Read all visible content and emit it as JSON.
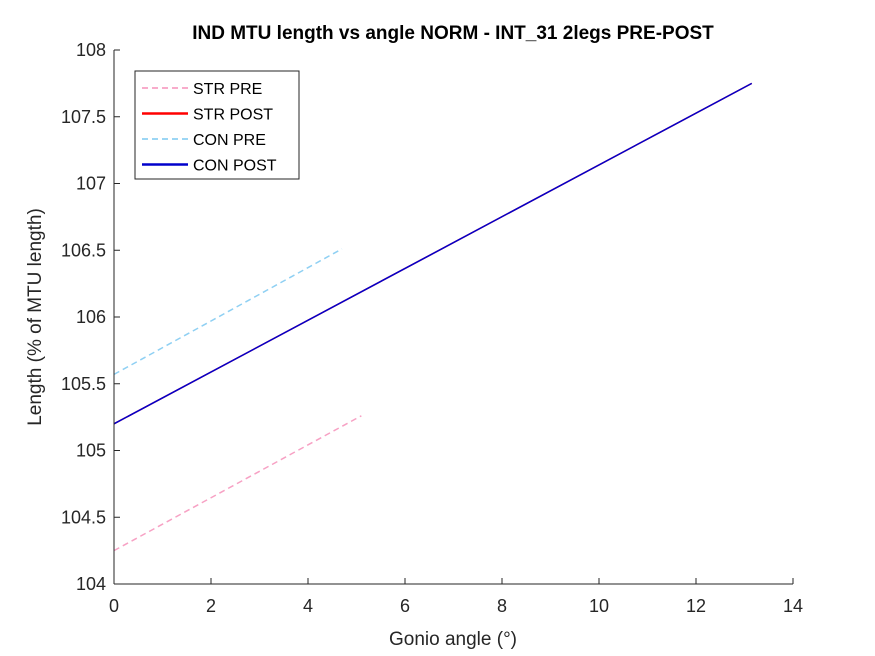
{
  "chart_data": {
    "type": "line",
    "title": "IND MTU length vs angle NORM - INT_31 2legs PRE-POST",
    "xlabel": "Gonio angle (°)",
    "ylabel": "Length (% of MTU length)",
    "xlim": [
      0,
      14
    ],
    "ylim": [
      104,
      108
    ],
    "xticks": [
      0,
      2,
      4,
      6,
      8,
      10,
      12,
      14
    ],
    "yticks": [
      104,
      104.5,
      105,
      105.5,
      106,
      106.5,
      107,
      107.5,
      108
    ],
    "xtick_labels": [
      "0",
      "2",
      "4",
      "6",
      "8",
      "10",
      "12",
      "14"
    ],
    "ytick_labels": [
      "104",
      "104.5",
      "105",
      "105.5",
      "106",
      "106.5",
      "107",
      "107.5",
      "108"
    ],
    "grid": false,
    "legend_position": "top-left",
    "series": [
      {
        "name": "STR PRE",
        "color": "#f7a1c4",
        "style": "dashed",
        "x": [
          0,
          5.1
        ],
        "y": [
          104.25,
          105.26
        ]
      },
      {
        "name": "STR POST",
        "color": "#ff0000",
        "style": "solid",
        "x": [
          0,
          13.15
        ],
        "y": [
          105.2,
          107.75
        ]
      },
      {
        "name": "CON PRE",
        "color": "#8fd0f3",
        "style": "dashed",
        "x": [
          0,
          4.7
        ],
        "y": [
          105.57,
          106.51
        ]
      },
      {
        "name": "CON POST",
        "color": "#0000cc",
        "style": "solid",
        "x": [
          0,
          13.15
        ],
        "y": [
          105.2,
          107.75
        ]
      }
    ]
  }
}
